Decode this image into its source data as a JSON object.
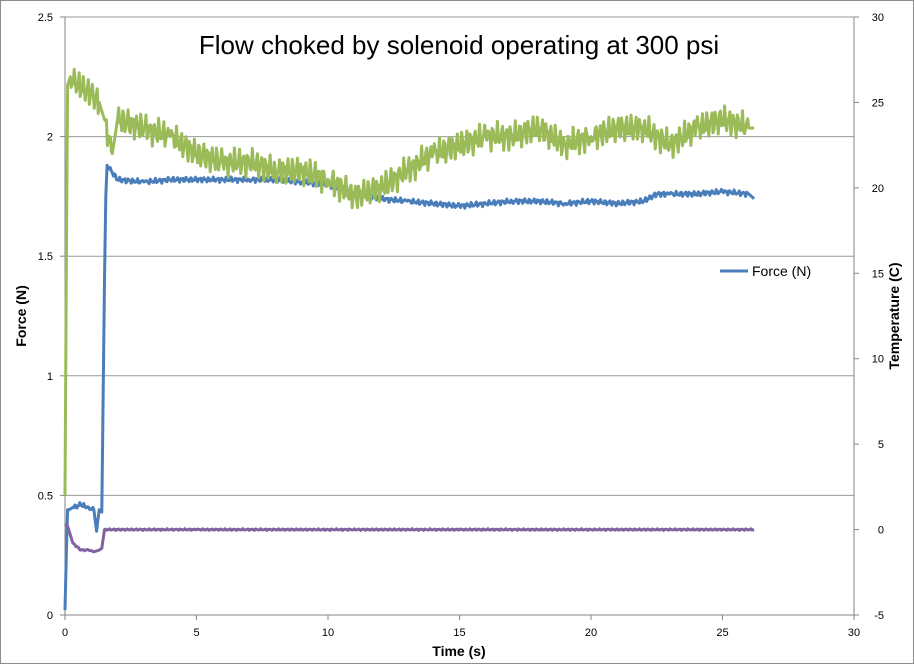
{
  "chart_data": {
    "type": "line",
    "title": "Flow choked by solenoid operating at 300 psi",
    "xlabel": "Time (s)",
    "ylabel": "Force (N)",
    "y2label": "Temperature (C)",
    "xlim": [
      0,
      30
    ],
    "ylim": [
      0,
      2.5
    ],
    "y2lim": [
      -5,
      30
    ],
    "x_ticks": [
      0,
      5,
      10,
      15,
      20,
      25,
      30
    ],
    "y_ticks": [
      0,
      0.5,
      1,
      1.5,
      2,
      2.5
    ],
    "y2_ticks": [
      -5,
      0,
      5,
      10,
      15,
      20,
      25,
      30
    ],
    "grid": "horizontal",
    "legend_placement": "right",
    "legend_entries": [
      "Force (N)"
    ],
    "series": [
      {
        "name": "Force (N)",
        "axis": "left",
        "color": "#4a7ebb",
        "x": [
          0,
          0.05,
          0.1,
          0.15,
          0.3,
          0.6,
          0.9,
          1.1,
          1.2,
          1.3,
          1.4,
          1.45,
          1.5,
          1.55,
          1.6,
          2,
          3,
          4,
          5,
          6,
          7,
          8,
          9,
          10,
          11,
          12,
          13,
          14,
          15,
          16,
          17,
          18,
          19,
          20,
          21,
          22,
          22.5,
          23,
          24,
          25,
          26,
          26.2
        ],
        "y": [
          0.02,
          0.25,
          0.44,
          0.44,
          0.45,
          0.46,
          0.45,
          0.44,
          0.35,
          0.44,
          0.43,
          0.9,
          1.4,
          1.75,
          1.88,
          1.82,
          1.81,
          1.82,
          1.82,
          1.82,
          1.82,
          1.82,
          1.81,
          1.8,
          1.76,
          1.74,
          1.73,
          1.72,
          1.71,
          1.72,
          1.73,
          1.73,
          1.72,
          1.73,
          1.72,
          1.73,
          1.76,
          1.76,
          1.76,
          1.77,
          1.76,
          1.74
        ]
      },
      {
        "name": "",
        "axis": "right",
        "color": "#9bbb59",
        "x": [
          0,
          0.05,
          0.1,
          0.2,
          0.5,
          1,
          1.3,
          1.5,
          1.8,
          2,
          3,
          4,
          5,
          6,
          7,
          8,
          9,
          10,
          11,
          12,
          13,
          14,
          15,
          16,
          17,
          18,
          19,
          20,
          21,
          22,
          23,
          24,
          25,
          26,
          26.2
        ],
        "y": [
          2,
          15,
          26,
          26.5,
          26,
          25.5,
          25,
          24,
          22,
          24,
          23.5,
          23,
          22,
          21.5,
          21.5,
          21,
          21,
          20.5,
          19.5,
          20,
          21,
          22,
          22.5,
          23,
          23,
          23.5,
          22.5,
          23,
          23.5,
          23.5,
          22.5,
          23.5,
          24,
          23.5,
          23.5
        ]
      },
      {
        "name": "",
        "axis": "right",
        "color": "#8064a2",
        "x": [
          0,
          0.1,
          0.3,
          0.6,
          0.9,
          1.1,
          1.3,
          1.4,
          1.5,
          2,
          5,
          10,
          15,
          20,
          25,
          26.2
        ],
        "y": [
          0.3,
          0.2,
          -0.8,
          -1.2,
          -1.2,
          -1.3,
          -1.2,
          -1.1,
          0,
          0,
          0,
          0,
          0,
          0,
          0,
          0
        ]
      }
    ]
  }
}
